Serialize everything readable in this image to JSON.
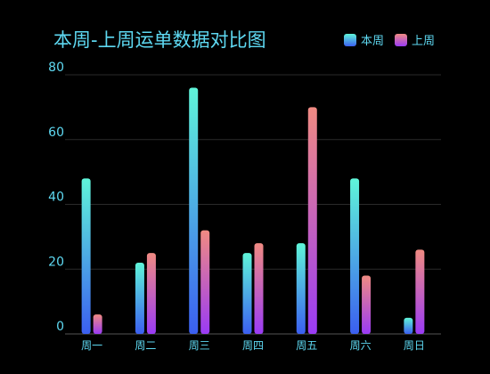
{
  "chart_data": {
    "type": "bar",
    "title": "本周-上周运单数据对比图",
    "categories": [
      "周一",
      "周二",
      "周三",
      "周四",
      "周五",
      "周六",
      "周日"
    ],
    "series": [
      {
        "name": "本周",
        "values": [
          48,
          22,
          76,
          25,
          28,
          48,
          5
        ]
      },
      {
        "name": "上周",
        "values": [
          6,
          25,
          32,
          28,
          70,
          18,
          26
        ]
      }
    ],
    "ylim": [
      0,
      80
    ],
    "yticks": [
      "0",
      "20",
      "40",
      "60",
      "80"
    ],
    "grid": true,
    "legend_position": "top-right",
    "colors": {
      "text": "#5ed9f2",
      "grid": "#2a2a2a",
      "axis": "#555555",
      "series_0_top": "#5ff5d9",
      "series_0_bottom": "#3b5ff0",
      "series_1_top": "#f08a82",
      "series_1_bottom": "#9a3bf5"
    }
  }
}
